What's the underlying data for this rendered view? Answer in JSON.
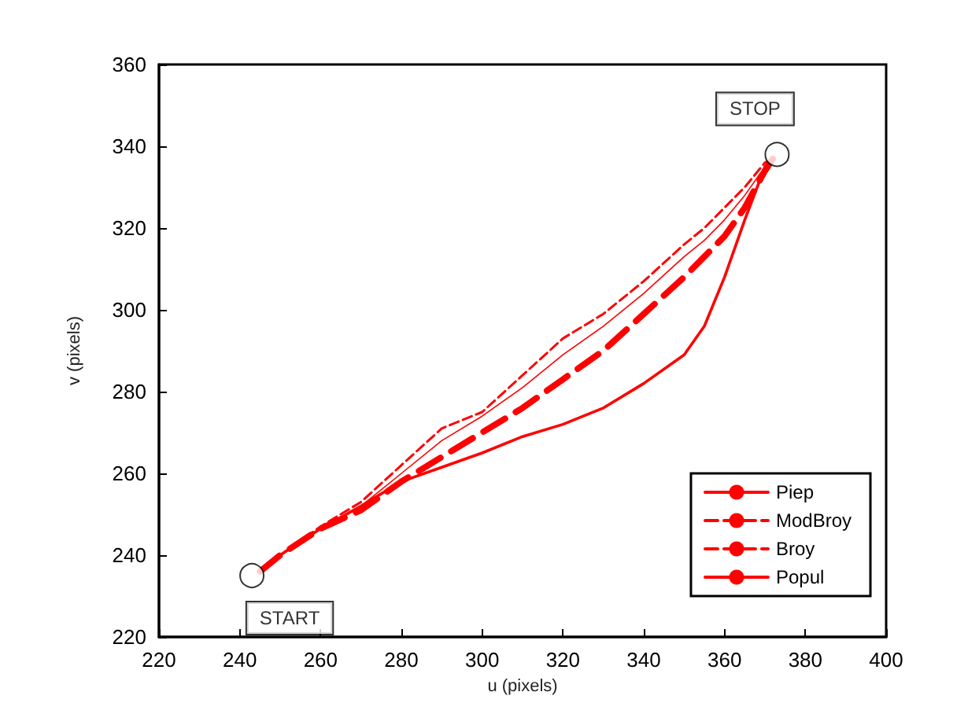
{
  "chart_data": {
    "type": "line",
    "xlabel": "u (pixels)",
    "ylabel": "v (pixels)",
    "xlim": [
      220,
      400
    ],
    "xticks": [
      220,
      240,
      260,
      280,
      300,
      320,
      340,
      360,
      380,
      400
    ],
    "ylim": [
      220,
      360
    ],
    "yticks": [
      220,
      240,
      260,
      280,
      300,
      320,
      340,
      360
    ],
    "grid": false,
    "legend": "bottom right",
    "marker": "none",
    "x": [
      245,
      250,
      260,
      270,
      280,
      290,
      300,
      310,
      320,
      330,
      340,
      350,
      355,
      360,
      365,
      370,
      372
    ],
    "series": [
      {
        "name": "Piep",
        "color": "#ff0000",
        "line_style": "solid",
        "values": [
          236,
          240,
          246.5,
          252,
          258,
          261.5,
          265,
          269,
          272,
          276,
          282,
          289,
          296,
          308,
          322,
          335,
          337
        ]
      },
      {
        "name": "ModBroy",
        "color": "#ff0000",
        "line_style": "dashed",
        "values": [
          236,
          240,
          247,
          253,
          262,
          271,
          275,
          284,
          293,
          299,
          307,
          316,
          320,
          325,
          330,
          336,
          337
        ]
      },
      {
        "name": "Broy",
        "color": "#ff0000",
        "line_style": "dashed",
        "values": [
          236,
          240,
          246.5,
          251,
          258,
          264,
          270,
          276,
          283,
          290,
          299,
          308,
          313,
          318,
          325,
          334,
          337
        ]
      },
      {
        "name": "Popul",
        "color": "#ff0000",
        "line_style": "solid",
        "values": [
          236,
          240,
          246.5,
          252,
          260,
          268,
          274,
          281,
          289,
          296,
          304,
          313,
          317,
          322,
          328,
          335,
          337
        ]
      }
    ],
    "annotations": [
      {
        "text": "START",
        "x": 243,
        "y": 235
      },
      {
        "text": "STOP",
        "x": 373,
        "y": 338
      }
    ]
  }
}
